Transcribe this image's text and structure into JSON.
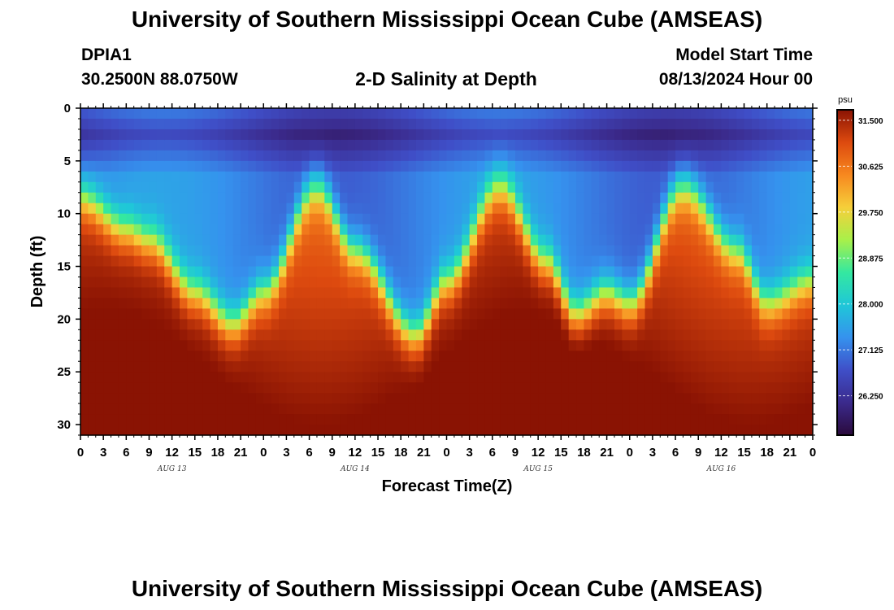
{
  "page": {
    "title_top": "University of Southern Mississippi Ocean Cube (AMSEAS)",
    "title_bottom": "University of Southern Mississippi Ocean Cube (AMSEAS)",
    "station": "DPIA1",
    "coordinates": "30.2500N  88.0750W",
    "plot_title": "2-D Salinity at Depth",
    "model_start_label": "Model Start Time",
    "model_start_value": "08/13/2024 Hour 00"
  },
  "chart_data": {
    "type": "heatmap",
    "title": "2-D Salinity at Depth",
    "xlabel": "Forecast Time(Z)",
    "ylabel": "Depth (ft)",
    "x_range_hours": [
      0,
      96
    ],
    "y_range_ft": [
      0,
      31
    ],
    "y_ticks": [
      "0",
      "5",
      "10",
      "15",
      "20",
      "25",
      "30"
    ],
    "x_tick_labels": [
      "0",
      "3",
      "6",
      "9",
      "12",
      "15",
      "18",
      "21",
      "0",
      "3",
      "6",
      "9",
      "12",
      "15",
      "18",
      "21",
      "0",
      "3",
      "6",
      "9",
      "12",
      "15",
      "18",
      "21",
      "0",
      "3",
      "6",
      "9",
      "12",
      "15",
      "18",
      "21",
      "0"
    ],
    "day_labels": [
      "AUG 13",
      "AUG 14",
      "AUG 15",
      "AUG 16"
    ],
    "colorbar": {
      "unit": "psu",
      "ticks": [
        "31.500",
        "30.625",
        "29.750",
        "28.875",
        "28.000",
        "27.125",
        "26.250"
      ],
      "range": [
        25.5,
        31.7
      ],
      "colors": [
        "#2a0a3c",
        "#3b2a8c",
        "#3f4fc8",
        "#3592ee",
        "#1fc7d8",
        "#34e8a0",
        "#a8f04a",
        "#f6cf3a",
        "#f7881f",
        "#dd4a0f",
        "#8a1303"
      ]
    },
    "halocline_depth_ft": [
      {
        "hour": 0,
        "depth": 8.5
      },
      {
        "hour": 6,
        "depth": 11.5
      },
      {
        "hour": 9,
        "depth": 12.5
      },
      {
        "hour": 15,
        "depth": 17.5
      },
      {
        "hour": 20,
        "depth": 20.5
      },
      {
        "hour": 24,
        "depth": 17.5
      },
      {
        "hour": 31,
        "depth": 7.5
      },
      {
        "hour": 36,
        "depth": 13.5
      },
      {
        "hour": 44,
        "depth": 21.5
      },
      {
        "hour": 48,
        "depth": 16.5
      },
      {
        "hour": 55,
        "depth": 7.5
      },
      {
        "hour": 61,
        "depth": 14.5
      },
      {
        "hour": 65,
        "depth": 19.5
      },
      {
        "hour": 69,
        "depth": 17.5
      },
      {
        "hour": 72,
        "depth": 18.5
      },
      {
        "hour": 79,
        "depth": 7.5
      },
      {
        "hour": 86,
        "depth": 13.5
      },
      {
        "hour": 90,
        "depth": 18.5
      },
      {
        "hour": 96,
        "depth": 16.5
      }
    ],
    "surface_salinity_psu": 27.2,
    "bottom_salinity_psu": 31.5
  }
}
